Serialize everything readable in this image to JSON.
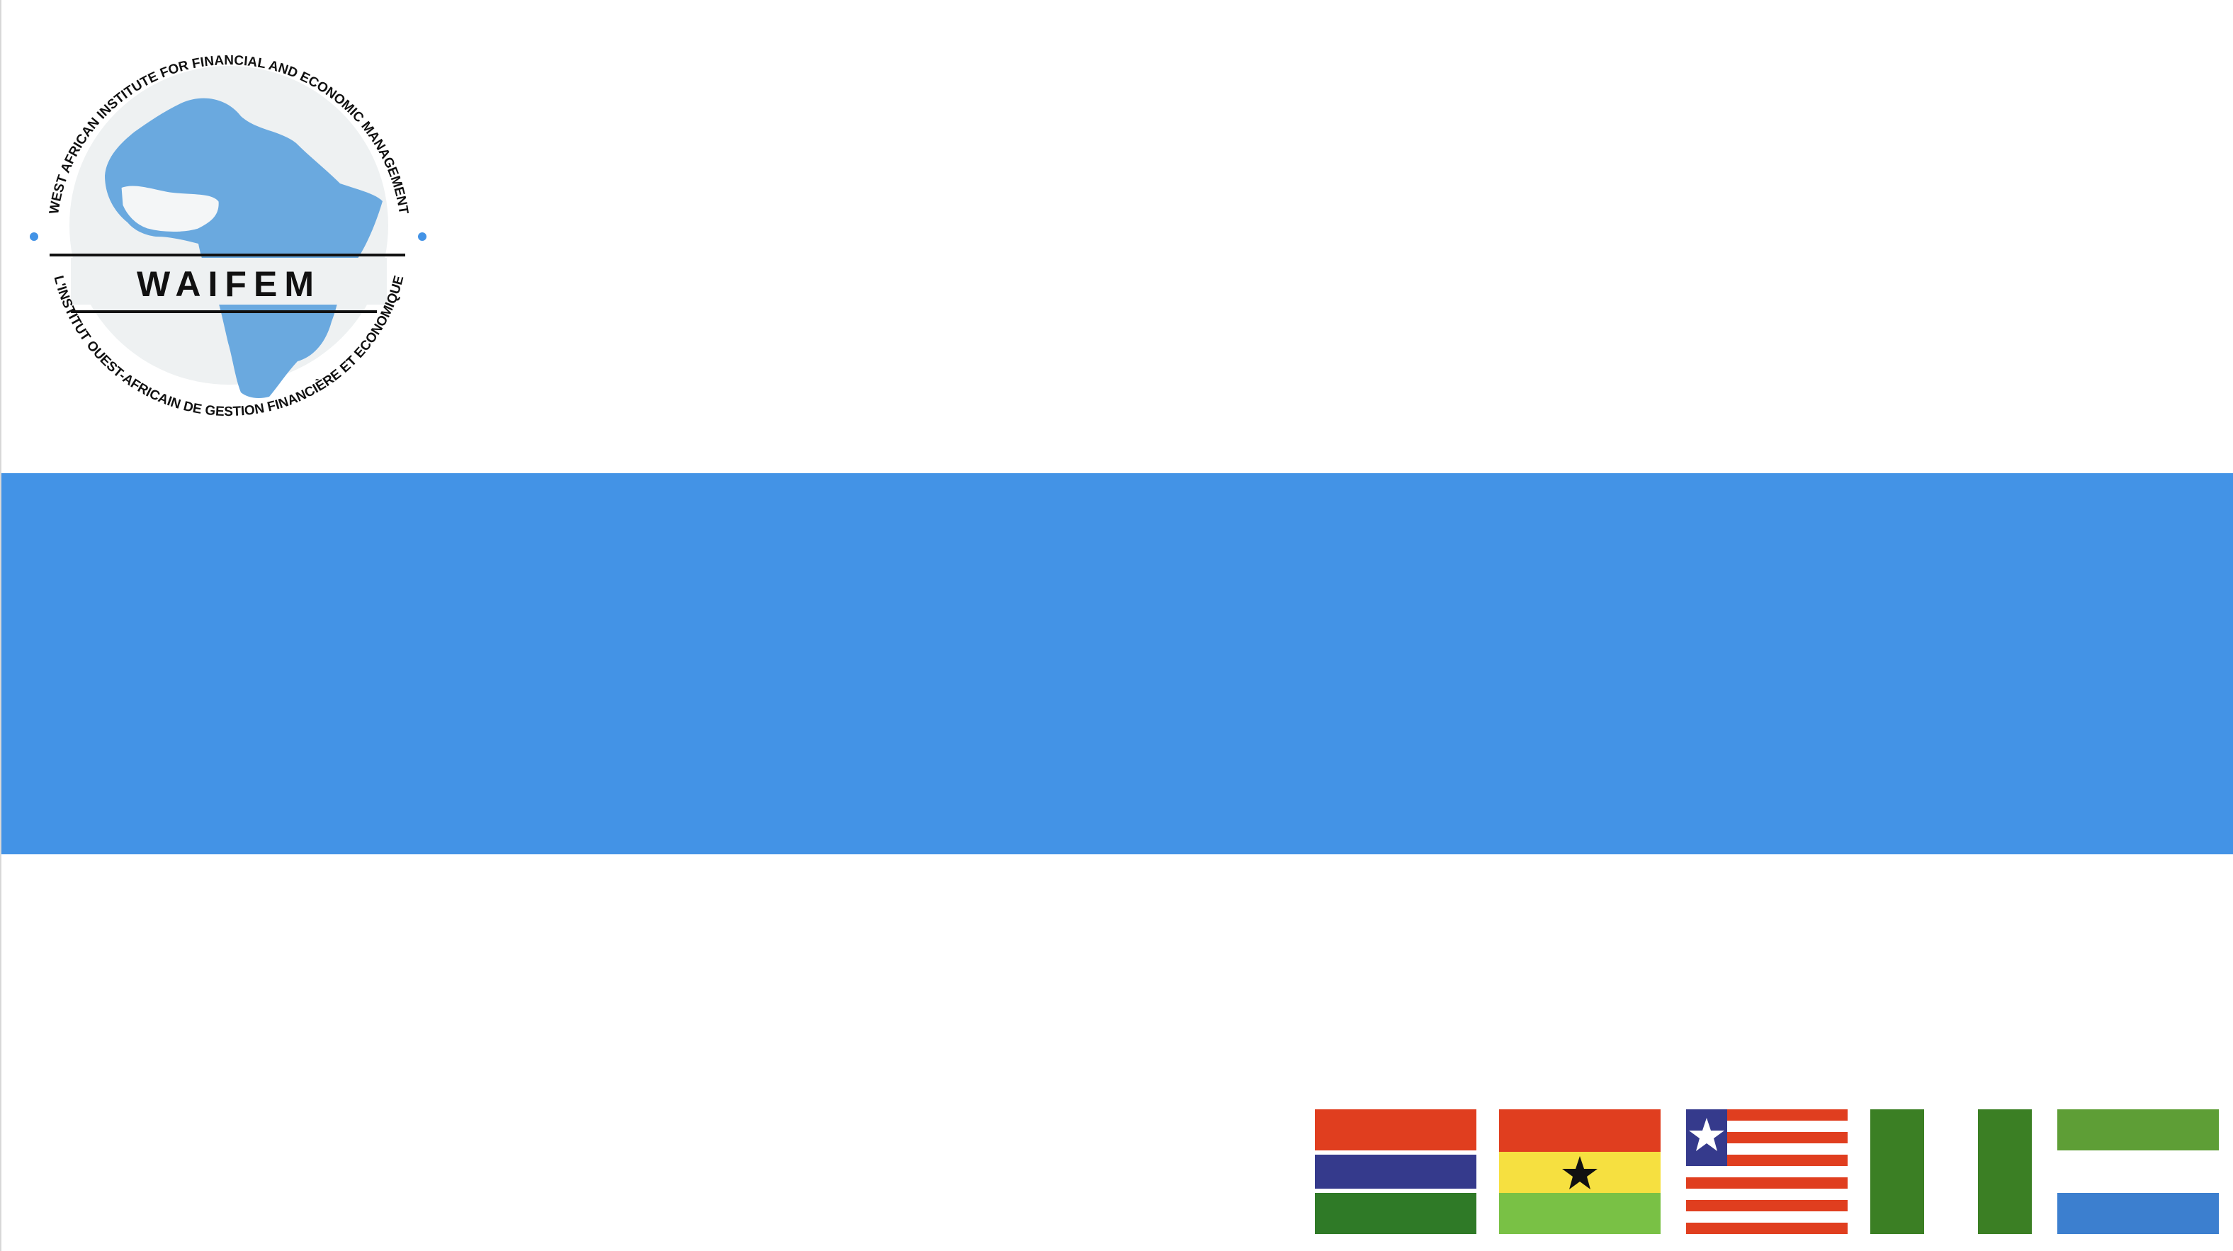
{
  "slide": {
    "logo": {
      "name": "WAIFEM",
      "outer_text_top": "WEST AFRICAN INSTITUTE FOR FINANCIAL AND ECONOMIC MANAGEMENT",
      "outer_text_bottom": "L'INSTITUT OUEST-AFRICAIN DE GESTION FINANCIÈRE ET ECONOMIQUE"
    },
    "title_band": {
      "color": "#4393e6",
      "text": ""
    },
    "flags": [
      {
        "country": "The Gambia",
        "icon": "gambia-flag"
      },
      {
        "country": "Ghana",
        "icon": "ghana-flag"
      },
      {
        "country": "Liberia",
        "icon": "liberia-flag"
      },
      {
        "country": "Nigeria",
        "icon": "nigeria-flag"
      },
      {
        "country": "Sierra Leone",
        "icon": "sierra-leone-flag"
      }
    ]
  }
}
